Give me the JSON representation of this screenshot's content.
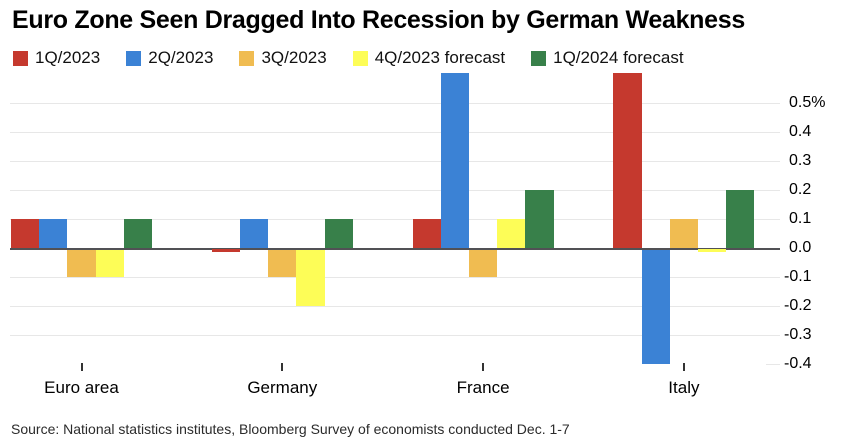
{
  "title": "Euro Zone Seen Dragged Into Recession by German Weakness",
  "source": "Source: National statistics institutes, Bloomberg Survey of economists conducted Dec. 1-7",
  "colors": {
    "red": "#c5392e",
    "blue": "#3b82d5",
    "orange": "#f0bc51",
    "yellow": "#fdfd57",
    "green": "#38804a",
    "gridline": "#e7e7e7",
    "zero_line": "#515155"
  },
  "chart_data": {
    "type": "bar",
    "title": "Euro Zone Seen Dragged Into Recession by German Weakness",
    "categories": [
      "Euro area",
      "Germany",
      "France",
      "Italy"
    ],
    "series": [
      {
        "name": "1Q/2023",
        "color": "#c5392e",
        "values": [
          0.1,
          0.0,
          0.1,
          0.6
        ]
      },
      {
        "name": "2Q/2023",
        "color": "#3b82d5",
        "values": [
          0.1,
          0.1,
          0.6,
          -0.4
        ]
      },
      {
        "name": "3Q/2023",
        "color": "#f0bc51",
        "values": [
          -0.1,
          -0.1,
          -0.1,
          0.1
        ]
      },
      {
        "name": "4Q/2023 forecast",
        "color": "#fdfd57",
        "values": [
          -0.1,
          -0.2,
          0.1,
          0.0
        ]
      },
      {
        "name": "1Q/2024 forecast",
        "color": "#38804a",
        "values": [
          0.1,
          0.1,
          0.2,
          0.2
        ]
      }
    ],
    "xlabel": "",
    "ylabel": "",
    "unit": "%",
    "y_ticks": [
      "0.5%",
      "0.4",
      "0.3",
      "0.2",
      "0.1",
      "0.0",
      "-0.1",
      "-0.2",
      "-0.3",
      "-0.4"
    ],
    "y_tick_values": [
      0.5,
      0.4,
      0.3,
      0.2,
      0.1,
      0.0,
      -0.1,
      -0.2,
      -0.3,
      -0.4
    ],
    "ylim": [
      -0.45,
      0.6
    ],
    "grid": true,
    "legend_position": "top-left"
  }
}
